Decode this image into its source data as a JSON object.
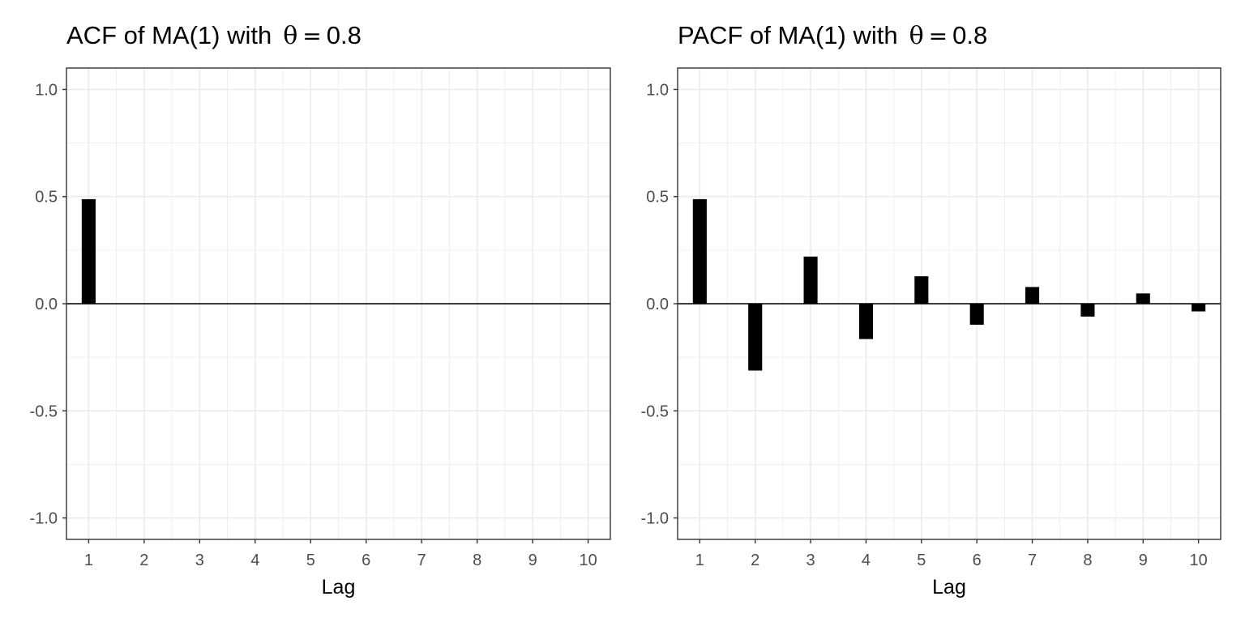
{
  "chart_data": [
    {
      "type": "bar",
      "title": {
        "text": "ACF of MA(1) with",
        "theta_symbol": "θ",
        "equals": "=",
        "theta_value": "0.8"
      },
      "xlabel": "Lag",
      "ylabel": "",
      "x": [
        1,
        2,
        3,
        4,
        5,
        6,
        7,
        8,
        9,
        10
      ],
      "values": [
        0.488,
        0,
        0,
        0,
        0,
        0,
        0,
        0,
        0,
        0
      ],
      "xlim": [
        0.6,
        10.4
      ],
      "ylim": [
        -1.1,
        1.1
      ],
      "x_ticks": [
        "1",
        "2",
        "3",
        "4",
        "5",
        "6",
        "7",
        "8",
        "9",
        "10"
      ],
      "y_ticks": [
        -1.0,
        -0.5,
        0.0,
        0.5,
        1.0
      ],
      "y_tick_labels": [
        "-1.0",
        "-0.5",
        "0.0",
        "0.5",
        "1.0"
      ],
      "bar_color": "#000000",
      "grid": true,
      "legend": "none"
    },
    {
      "type": "bar",
      "title": {
        "text": "PACF of MA(1) with",
        "theta_symbol": "θ",
        "equals": "=",
        "theta_value": "0.8"
      },
      "xlabel": "Lag",
      "ylabel": "",
      "x": [
        1,
        2,
        3,
        4,
        5,
        6,
        7,
        8,
        9,
        10
      ],
      "values": [
        0.488,
        -0.312,
        0.22,
        -0.165,
        0.128,
        -0.098,
        0.078,
        -0.06,
        0.048,
        -0.036
      ],
      "xlim": [
        0.6,
        10.4
      ],
      "ylim": [
        -1.1,
        1.1
      ],
      "x_ticks": [
        "1",
        "2",
        "3",
        "4",
        "5",
        "6",
        "7",
        "8",
        "9",
        "10"
      ],
      "y_ticks": [
        -1.0,
        -0.5,
        0.0,
        0.5,
        1.0
      ],
      "y_tick_labels": [
        "-1.0",
        "-0.5",
        "0.0",
        "0.5",
        "1.0"
      ],
      "bar_color": "#000000",
      "grid": true,
      "legend": "none"
    }
  ]
}
